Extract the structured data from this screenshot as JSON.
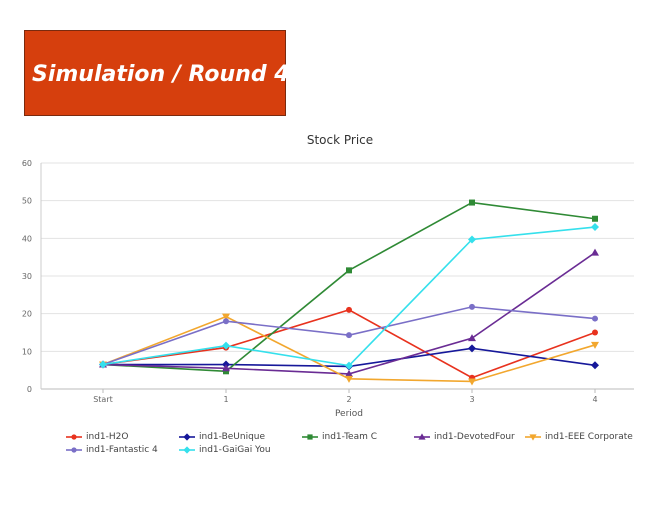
{
  "banner": {
    "title": "Simulation / Round 4"
  },
  "chart_data": {
    "type": "line",
    "title": "Stock Price",
    "xlabel": "Period",
    "ylabel": "",
    "categories": [
      "Start",
      "1",
      "2",
      "3",
      "4"
    ],
    "ylim": [
      0,
      60
    ],
    "yticks": [
      0,
      10,
      20,
      30,
      40,
      50,
      60
    ],
    "grid": true,
    "legend_position": "bottom",
    "series": [
      {
        "name": "ind1-H2O",
        "color": "#e8321e",
        "marker": "circle",
        "values": [
          6.5,
          11,
          21,
          3,
          15
        ]
      },
      {
        "name": "ind1-BeUnique",
        "color": "#16189a",
        "marker": "diamond",
        "values": [
          6.5,
          6.5,
          6,
          10.8,
          6.3
        ]
      },
      {
        "name": "ind1-Team C",
        "color": "#2f8a35",
        "marker": "square",
        "values": [
          6.5,
          4.7,
          31.5,
          49.5,
          45.2
        ]
      },
      {
        "name": "ind1-DevotedFour",
        "color": "#6a2c94",
        "marker": "triangle",
        "values": [
          6.5,
          5.5,
          4,
          13.5,
          36.2
        ]
      },
      {
        "name": "ind1-EEE Corporate",
        "color": "#f2a72e",
        "marker": "triangle-down",
        "values": [
          6.5,
          19.2,
          2.7,
          2,
          11.7
        ]
      },
      {
        "name": "ind1-Fantastic 4",
        "color": "#7a6fc7",
        "marker": "circle",
        "values": [
          6.5,
          18,
          14.3,
          21.8,
          18.7
        ]
      },
      {
        "name": "ind1-GaiGai You",
        "color": "#35e0ec",
        "marker": "diamond",
        "values": [
          6.5,
          11.5,
          6.2,
          39.7,
          43
        ]
      }
    ]
  }
}
